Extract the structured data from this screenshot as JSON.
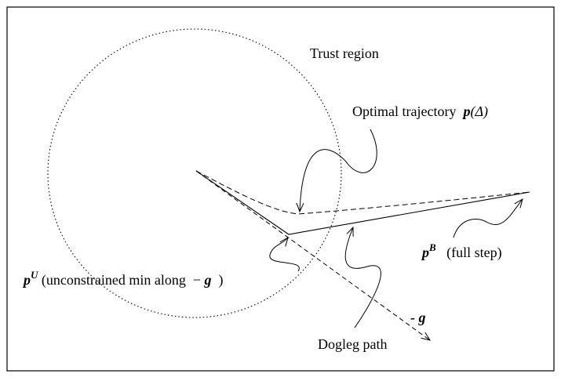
{
  "labels": {
    "trust_region": "Trust region",
    "optimal_trajectory": "Optimal trajectory",
    "optimal_p": "p",
    "optimal_arg": "(Δ)",
    "dogleg_path": "Dogleg path",
    "neg_g": "- g",
    "pU_base": "p",
    "pU_sup": "U",
    "pU_text": "(unconstrained min along",
    "pU_minus": "−",
    "pU_g": "g",
    "pU_close": ")",
    "pB_base": "p",
    "pB_sup": "B",
    "pB_text": "(full step)"
  }
}
